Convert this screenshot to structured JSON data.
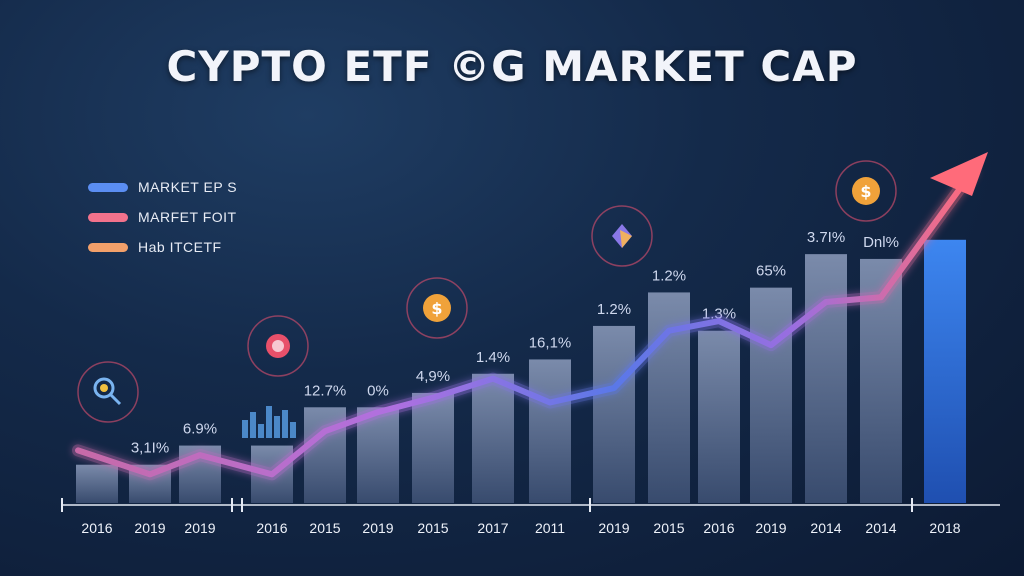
{
  "title": "CYPTO ETF ©G MARKET CAP",
  "legend": [
    {
      "label": "MARKET EP S",
      "color": "#5b8ef2"
    },
    {
      "label": "MARFET FOIT",
      "color": "#f2728c"
    },
    {
      "label": "Hab ITCETF",
      "color": "#f2a06a"
    }
  ],
  "chart_data": {
    "type": "bar",
    "categories": [
      "2016",
      "2019",
      "2019",
      "2016",
      "2015",
      "2019",
      "2015",
      "2017",
      "2011",
      "2019",
      "2015",
      "2016",
      "2019",
      "2014",
      "2014",
      "2018"
    ],
    "values": [
      8,
      8,
      12,
      12,
      20,
      20,
      23,
      27,
      30,
      37,
      44,
      36,
      45,
      52,
      51,
      55
    ],
    "data_labels": [
      "",
      "3,1I%",
      "6.9%",
      "",
      "12.7%",
      "0%",
      "4,9%",
      "1.4%",
      "16,1%",
      "1.2%",
      "1.2%",
      "1.3%",
      "65%",
      "3.7I%",
      "Dnl%",
      ""
    ],
    "line_values": [
      11,
      6,
      10,
      6,
      15,
      19,
      22,
      26,
      21,
      24,
      36,
      38,
      33,
      42,
      43,
      63
    ],
    "ylim": [
      0,
      70
    ],
    "icons": [
      "magnifier-coin-icon",
      "city-skyline-icon",
      "brain-icon",
      "dollar-coin-icon",
      "crystal-icon",
      "dollar-coin-icon"
    ],
    "colors": {
      "bar_top": "#7a8aa8",
      "bar_bottom": "#3e5274",
      "last_bar": "#2f6fd8",
      "line_start": "#6a82e8",
      "line_mid": "#a96ad6",
      "line_end": "#ff6a7a"
    }
  }
}
